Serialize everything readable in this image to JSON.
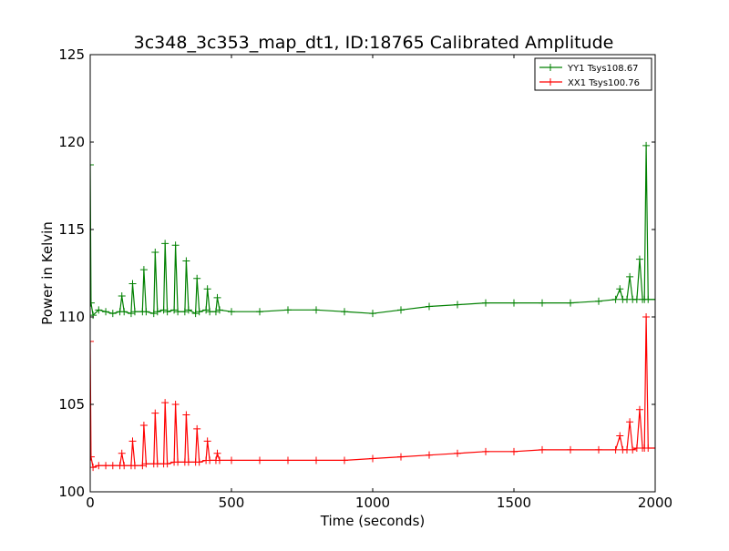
{
  "chart_data": {
    "type": "line",
    "title": "3c348_3c353_map_dt1, ID:18765 Calibrated Amplitude",
    "xlabel": "Time (seconds)",
    "ylabel": "Power in Kelvin",
    "xlim": [
      0,
      2000
    ],
    "ylim": [
      100,
      125
    ],
    "xticks": [
      "0",
      "500",
      "1000",
      "1500",
      "2000"
    ],
    "yticks": [
      "100",
      "105",
      "110",
      "115",
      "120",
      "125"
    ],
    "grid": false,
    "legend_position": "top-right",
    "marker": "plus",
    "series": [
      {
        "name": "YY1 Tsys108.67",
        "color": "#008000",
        "points": [
          [
            0,
            118.7
          ],
          [
            3,
            110.8
          ],
          [
            10,
            110.1
          ],
          [
            30,
            110.4
          ],
          [
            55,
            110.3
          ],
          [
            80,
            110.2
          ],
          [
            105,
            110.3
          ],
          [
            112,
            111.2
          ],
          [
            120,
            110.3
          ],
          [
            145,
            110.2
          ],
          [
            150,
            111.9
          ],
          [
            158,
            110.3
          ],
          [
            185,
            110.3
          ],
          [
            190,
            112.7
          ],
          [
            198,
            110.3
          ],
          [
            225,
            110.2
          ],
          [
            230,
            113.7
          ],
          [
            238,
            110.3
          ],
          [
            260,
            110.4
          ],
          [
            265,
            114.2
          ],
          [
            273,
            110.3
          ],
          [
            297,
            110.4
          ],
          [
            302,
            114.1
          ],
          [
            310,
            110.3
          ],
          [
            335,
            110.3
          ],
          [
            340,
            113.2
          ],
          [
            348,
            110.4
          ],
          [
            373,
            110.2
          ],
          [
            378,
            112.2
          ],
          [
            386,
            110.3
          ],
          [
            410,
            110.4
          ],
          [
            415,
            111.6
          ],
          [
            423,
            110.3
          ],
          [
            445,
            110.3
          ],
          [
            450,
            111.1
          ],
          [
            458,
            110.4
          ],
          [
            500,
            110.3
          ],
          [
            600,
            110.3
          ],
          [
            700,
            110.4
          ],
          [
            800,
            110.4
          ],
          [
            900,
            110.3
          ],
          [
            1000,
            110.2
          ],
          [
            1100,
            110.4
          ],
          [
            1200,
            110.6
          ],
          [
            1300,
            110.7
          ],
          [
            1400,
            110.8
          ],
          [
            1500,
            110.8
          ],
          [
            1600,
            110.8
          ],
          [
            1700,
            110.8
          ],
          [
            1800,
            110.9
          ],
          [
            1860,
            111.0
          ],
          [
            1875,
            111.6
          ],
          [
            1885,
            111.0
          ],
          [
            1900,
            111.0
          ],
          [
            1910,
            112.3
          ],
          [
            1920,
            111.0
          ],
          [
            1935,
            111.0
          ],
          [
            1945,
            113.3
          ],
          [
            1955,
            111.0
          ],
          [
            1962,
            111.0
          ],
          [
            1968,
            119.8
          ],
          [
            1975,
            111.0
          ],
          [
            2000,
            111.0
          ]
        ]
      },
      {
        "name": "XX1 Tsys100.76",
        "color": "#ff0000",
        "points": [
          [
            0,
            108.6
          ],
          [
            3,
            102.0
          ],
          [
            10,
            101.4
          ],
          [
            30,
            101.5
          ],
          [
            55,
            101.5
          ],
          [
            80,
            101.5
          ],
          [
            105,
            101.5
          ],
          [
            112,
            102.2
          ],
          [
            120,
            101.5
          ],
          [
            145,
            101.5
          ],
          [
            150,
            102.9
          ],
          [
            158,
            101.5
          ],
          [
            185,
            101.5
          ],
          [
            190,
            103.8
          ],
          [
            198,
            101.6
          ],
          [
            225,
            101.6
          ],
          [
            230,
            104.5
          ],
          [
            238,
            101.6
          ],
          [
            260,
            101.6
          ],
          [
            265,
            105.1
          ],
          [
            273,
            101.6
          ],
          [
            297,
            101.7
          ],
          [
            302,
            105.0
          ],
          [
            310,
            101.7
          ],
          [
            335,
            101.7
          ],
          [
            340,
            104.4
          ],
          [
            348,
            101.7
          ],
          [
            373,
            101.7
          ],
          [
            378,
            103.6
          ],
          [
            386,
            101.7
          ],
          [
            410,
            101.8
          ],
          [
            415,
            102.9
          ],
          [
            423,
            101.8
          ],
          [
            445,
            101.8
          ],
          [
            450,
            102.2
          ],
          [
            458,
            101.8
          ],
          [
            500,
            101.8
          ],
          [
            600,
            101.8
          ],
          [
            700,
            101.8
          ],
          [
            800,
            101.8
          ],
          [
            900,
            101.8
          ],
          [
            1000,
            101.9
          ],
          [
            1100,
            102.0
          ],
          [
            1200,
            102.1
          ],
          [
            1300,
            102.2
          ],
          [
            1400,
            102.3
          ],
          [
            1500,
            102.3
          ],
          [
            1600,
            102.4
          ],
          [
            1700,
            102.4
          ],
          [
            1800,
            102.4
          ],
          [
            1860,
            102.4
          ],
          [
            1875,
            103.2
          ],
          [
            1885,
            102.4
          ],
          [
            1900,
            102.4
          ],
          [
            1910,
            104.0
          ],
          [
            1920,
            102.4
          ],
          [
            1935,
            102.5
          ],
          [
            1945,
            104.7
          ],
          [
            1955,
            102.5
          ],
          [
            1962,
            102.5
          ],
          [
            1968,
            110.0
          ],
          [
            1975,
            102.5
          ],
          [
            2000,
            102.5
          ]
        ]
      }
    ]
  }
}
